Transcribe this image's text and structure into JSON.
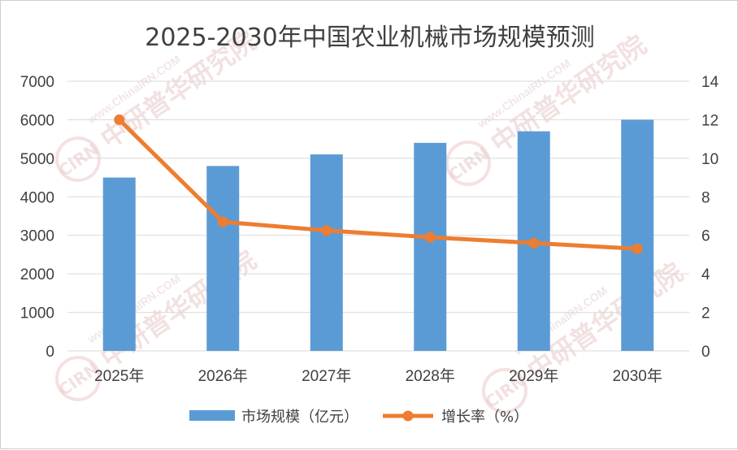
{
  "chart_data": {
    "type": "bar",
    "title": "2025-2030年中国农业机械市场规模预测",
    "categories": [
      "2025年",
      "2026年",
      "2027年",
      "2028年",
      "2029年",
      "2030年"
    ],
    "series": [
      {
        "name": "市场规模（亿元）",
        "type": "bar",
        "axis": "left",
        "color": "#5b9bd5",
        "values": [
          4500,
          4800,
          5100,
          5400,
          5700,
          6000
        ]
      },
      {
        "name": "增长率（%）",
        "type": "line",
        "axis": "right",
        "color": "#ed7d31",
        "values": [
          12.0,
          6.7,
          6.25,
          5.9,
          5.6,
          5.3
        ]
      }
    ],
    "y_left": {
      "min": 0,
      "max": 7000,
      "step": 1000,
      "ticks": [
        "0",
        "1000",
        "2000",
        "3000",
        "4000",
        "5000",
        "6000",
        "7000"
      ]
    },
    "y_right": {
      "min": 0,
      "max": 14,
      "step": 2,
      "ticks": [
        "0",
        "2",
        "4",
        "6",
        "8",
        "10",
        "12",
        "14"
      ]
    },
    "grid": true,
    "legend": "bottom"
  },
  "watermark": {
    "logo_text": "CIRN",
    "brand_cn": "中研普华研究院",
    "url": "www.ChinaIRN.COM"
  }
}
